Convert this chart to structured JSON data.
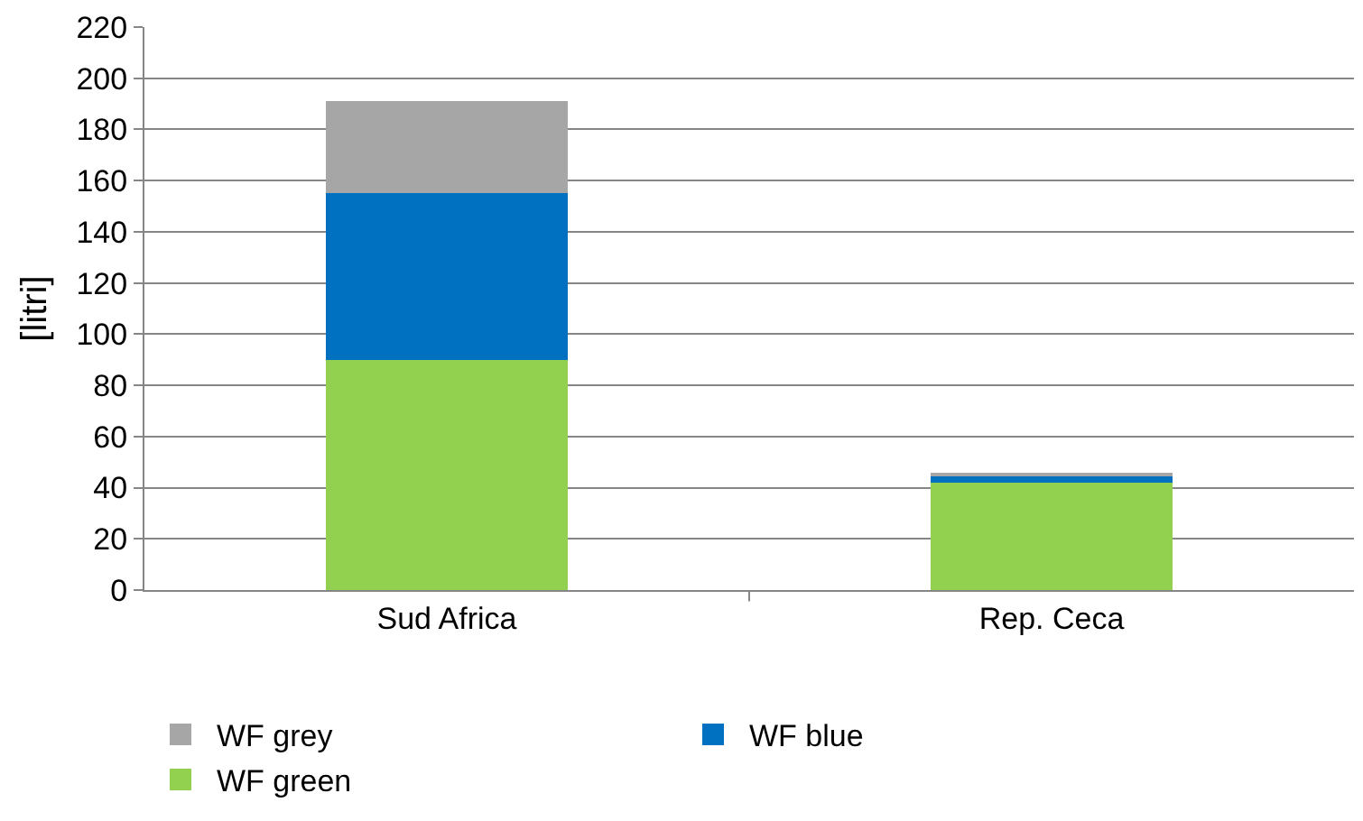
{
  "chart_data": {
    "type": "bar",
    "stacked": true,
    "ylabel": "[litri]",
    "categories": [
      "Sud Africa",
      "Rep. Ceca"
    ],
    "series": [
      {
        "name": "WF green",
        "color": "#92d050",
        "values": [
          90,
          42
        ]
      },
      {
        "name": "WF blue",
        "color": "#0070c0",
        "values": [
          65,
          3
        ]
      },
      {
        "name": "WF grey",
        "color": "#a6a6a6",
        "values": [
          36,
          1
        ]
      }
    ],
    "ylim": [
      0,
      220
    ],
    "yticks": [
      0,
      20,
      40,
      60,
      80,
      100,
      120,
      140,
      160,
      180,
      200,
      220
    ],
    "grid": "y",
    "legend": "bottom"
  }
}
